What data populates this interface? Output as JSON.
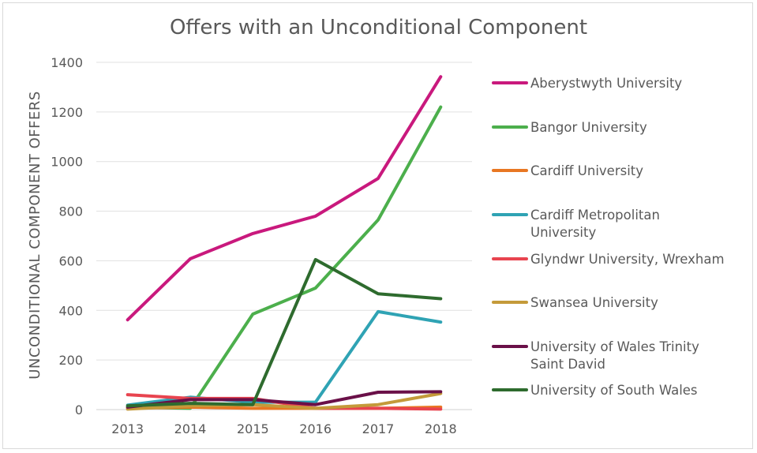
{
  "chart_data": {
    "type": "line",
    "title": "Offers with an Unconditional Component",
    "xlabel": "",
    "ylabel": "UNCONDITIONAL COMPONENT OFFERS",
    "x": [
      "2013",
      "2014",
      "2015",
      "2016",
      "2017",
      "2018"
    ],
    "ylim": [
      0,
      1400
    ],
    "yticks": [
      "0",
      "200",
      "400",
      "600",
      "800",
      "1000",
      "1200",
      "1400"
    ],
    "grid": true,
    "legend_position": "right",
    "series": [
      {
        "name": "Aberystwyth University",
        "color": "#c9197d",
        "values": [
          362,
          608,
          710,
          780,
          932,
          1342
        ]
      },
      {
        "name": "Bangor University",
        "color": "#4caf4c",
        "values": [
          10,
          5,
          385,
          490,
          765,
          1220
        ]
      },
      {
        "name": "Cardiff University",
        "color": "#e87722",
        "values": [
          5,
          10,
          5,
          5,
          5,
          10
        ]
      },
      {
        "name": "Cardiff Metropolitan University",
        "color": "#2fa3b4",
        "values": [
          18,
          50,
          30,
          30,
          395,
          353
        ]
      },
      {
        "name": "Glyndwr University, Wrexham",
        "color": "#e8444f",
        "values": [
          60,
          45,
          45,
          5,
          5,
          2
        ]
      },
      {
        "name": "Swansea University",
        "color": "#c49a3a",
        "values": [
          2,
          15,
          20,
          5,
          20,
          65
        ]
      },
      {
        "name": "University of Wales Trinity Saint David",
        "color": "#6a1048",
        "values": [
          10,
          40,
          40,
          20,
          70,
          72
        ]
      },
      {
        "name": "University of South Wales",
        "color": "#2e6b2e",
        "values": [
          15,
          25,
          20,
          605,
          467,
          447
        ]
      }
    ]
  },
  "legend_lines": {
    "Aberystwyth University": [
      "Aberystwyth University"
    ],
    "Bangor University": [
      "Bangor University"
    ],
    "Cardiff University": [
      "Cardiff University"
    ],
    "Cardiff Metropolitan University": [
      "Cardiff Metropolitan",
      "University"
    ],
    "Glyndwr University, Wrexham": [
      "Glyndwr University, Wrexham"
    ],
    "Swansea University": [
      "Swansea University"
    ],
    "University of Wales Trinity Saint David": [
      "University of Wales Trinity",
      "Saint David"
    ],
    "University of South Wales": [
      "University of South Wales"
    ]
  }
}
